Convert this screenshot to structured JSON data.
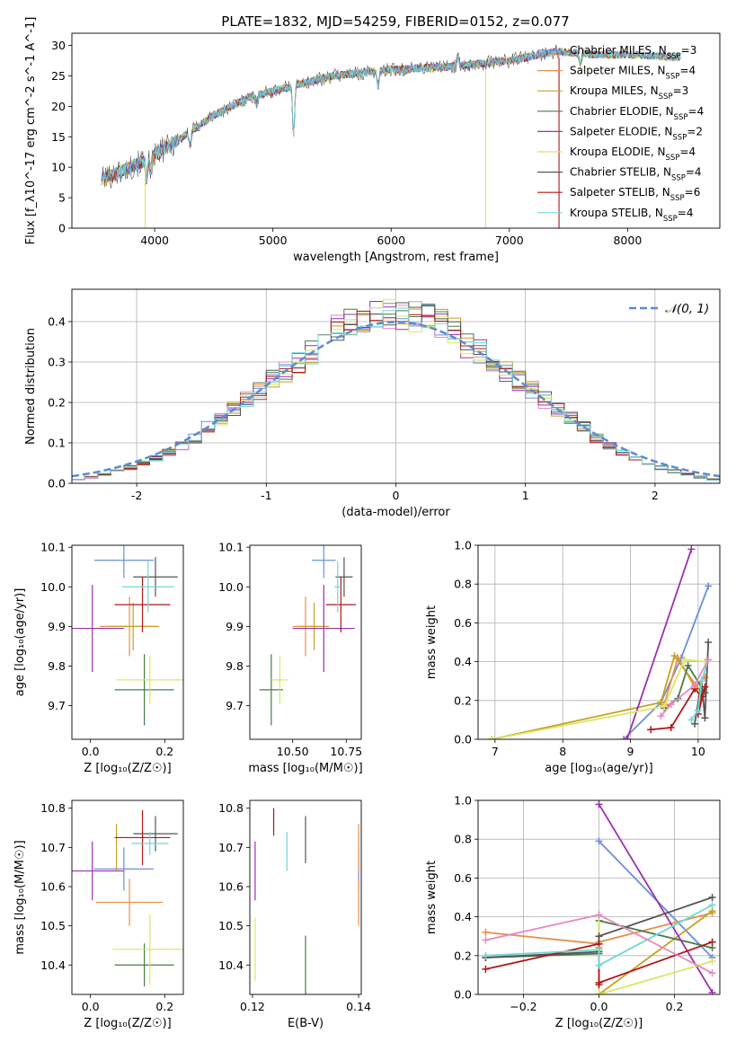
{
  "figure_title": "PLATE=1832, MJD=54259, FIBERID=0152, z=0.077",
  "colors": {
    "chabrier_miles": "#6a8fd8",
    "salpeter_miles": "#e8904a",
    "kroupa_miles": "#c8a020",
    "chabrier_elodie": "#4a7a4a",
    "salpeter_elodie": "#9a30b0",
    "kroupa_elodie": "#d8e860",
    "chabrier_stelib": "#555555",
    "salpeter_stelib": "#b01818",
    "kroupa_stelib": "#70d8d8",
    "gauss": "#5b8bd0"
  },
  "chart_data": [
    {
      "id": "spectrum",
      "type": "line",
      "title": "PLATE=1832, MJD=54259, FIBERID=0152, z=0.077",
      "xlabel": "wavelength [Angstrom, rest frame]",
      "ylabel": "Flux [f_λ10^-17 erg cm^-2 s^-1 A^-1]",
      "xlim": [
        3300,
        8780
      ],
      "ylim": [
        0,
        32
      ],
      "xticks": [
        4000,
        5000,
        6000,
        7000,
        8000
      ],
      "yticks": [
        0,
        5,
        10,
        15,
        20,
        25,
        30
      ],
      "legend_position": "top-right",
      "legend": [
        {
          "base": "Chabrier MILES, N",
          "n": "3",
          "color_key": "chabrier_miles"
        },
        {
          "base": "Salpeter MILES, N",
          "n": "4",
          "color_key": "salpeter_miles"
        },
        {
          "base": "Kroupa MILES, N",
          "n": "3",
          "color_key": "kroupa_miles"
        },
        {
          "base": "Chabrier ELODIE, N",
          "n": "4",
          "color_key": "chabrier_elodie"
        },
        {
          "base": "Salpeter ELODIE, N",
          "n": "2",
          "color_key": "salpeter_elodie"
        },
        {
          "base": "Kroupa ELODIE, N",
          "n": "4",
          "color_key": "kroupa_elodie"
        },
        {
          "base": "Chabrier STELIB, N",
          "n": "4",
          "color_key": "chabrier_stelib"
        },
        {
          "base": "Salpeter STELIB, N",
          "n": "6",
          "color_key": "salpeter_stelib"
        },
        {
          "base": "Kroupa STELIB, N",
          "n": "4",
          "color_key": "kroupa_stelib"
        }
      ],
      "legend_subscript": "SSP",
      "continuum": [
        [
          3550,
          8
        ],
        [
          3800,
          10
        ],
        [
          4000,
          12
        ],
        [
          4200,
          14.5
        ],
        [
          4500,
          18.5
        ],
        [
          4800,
          21.5
        ],
        [
          5000,
          22.5
        ],
        [
          5200,
          23.5
        ],
        [
          5500,
          25
        ],
        [
          6000,
          26
        ],
        [
          6500,
          26.5
        ],
        [
          7000,
          27.5
        ],
        [
          7400,
          29
        ],
        [
          7700,
          28.5
        ],
        [
          8000,
          28.5
        ],
        [
          8500,
          28
        ]
      ],
      "absorption_features": [
        [
          3933,
          3
        ],
        [
          3968,
          3
        ],
        [
          4300,
          2.5
        ],
        [
          4861,
          1.5
        ],
        [
          5175,
          8
        ],
        [
          5890,
          2.5
        ],
        [
          6563,
          -1.5
        ],
        [
          7600,
          2
        ]
      ],
      "model_x_range": [
        3550,
        8450
      ],
      "data_x_range": [
        3550,
        7420
      ],
      "dropouts": [
        {
          "x": 3920,
          "color_key": "kroupa_elodie"
        },
        {
          "x": 6800,
          "color_key": "kroupa_elodie"
        },
        {
          "x": 7420,
          "color_key": "salpeter_stelib"
        }
      ]
    },
    {
      "id": "residual_histogram",
      "type": "histogram",
      "xlabel": "(data-model)/error",
      "ylabel": "Normed distribution",
      "xlim": [
        -2.5,
        2.5
      ],
      "ylim": [
        0,
        0.48
      ],
      "xticks": [
        -2,
        -1,
        0,
        1,
        2
      ],
      "yticks": [
        0.0,
        0.1,
        0.2,
        0.3,
        0.4
      ],
      "grid": true,
      "bin_width": 0.1,
      "legend_position": "top-right",
      "gaussian_label": "𝒩(0, 1)",
      "gaussian": {
        "mean": 0,
        "sigma": 1
      }
    },
    {
      "id": "age_vs_Z",
      "type": "errorbar",
      "xlabel": "Z [log₁₀(Z/Z☉)]",
      "ylabel": "age [log₁₀(age/yr)]",
      "xlim": [
        -0.05,
        0.25
      ],
      "ylim": [
        9.615,
        10.105
      ],
      "xticks": [
        0.0,
        0.2
      ],
      "yticks": [
        9.7,
        9.8,
        9.9,
        10.0,
        10.1
      ],
      "points": [
        {
          "x": 0.09,
          "xerr": 0.08,
          "y": 10.067,
          "yerr": 0.045,
          "color_key": "chabrier_miles"
        },
        {
          "x": 0.105,
          "xerr": 0.08,
          "y": 9.9,
          "yerr": 0.075,
          "color_key": "salpeter_miles"
        },
        {
          "x": 0.115,
          "xerr": 0.065,
          "y": 9.9,
          "yerr": 0.06,
          "color_key": "kroupa_miles"
        },
        {
          "x": 0.145,
          "xerr": 0.08,
          "y": 9.74,
          "yerr": 0.09,
          "color_key": "chabrier_elodie"
        },
        {
          "x": 0.005,
          "xerr": 0.085,
          "y": 9.895,
          "yerr": 0.11,
          "color_key": "salpeter_elodie"
        },
        {
          "x": 0.16,
          "xerr": 0.09,
          "y": 9.765,
          "yerr": 0.06,
          "color_key": "kroupa_elodie"
        },
        {
          "x": 0.175,
          "xerr": 0.06,
          "y": 10.025,
          "yerr": 0.05,
          "color_key": "chabrier_stelib"
        },
        {
          "x": 0.14,
          "xerr": 0.075,
          "y": 9.955,
          "yerr": 0.07,
          "color_key": "salpeter_stelib"
        },
        {
          "x": 0.155,
          "xerr": 0.07,
          "y": 10.0,
          "yerr": 0.065,
          "color_key": "kroupa_stelib"
        }
      ]
    },
    {
      "id": "age_vs_mass",
      "type": "errorbar",
      "xlabel": "mass [log₁₀(M/M☉)]",
      "xlim": [
        10.3,
        10.82
      ],
      "ylim": [
        9.615,
        10.105
      ],
      "xticks": [
        10.5,
        10.75
      ],
      "xtick_labels": [
        "10.50",
        "10.75"
      ],
      "yticks": [
        9.7,
        9.8,
        9.9,
        10.0,
        10.1
      ],
      "points": [
        {
          "x": 10.645,
          "xerr": 0.055,
          "y": 10.067,
          "yerr": 0.045,
          "color_key": "chabrier_miles"
        },
        {
          "x": 10.56,
          "xerr": 0.06,
          "y": 9.9,
          "yerr": 0.075,
          "color_key": "salpeter_miles"
        },
        {
          "x": 10.6,
          "xerr": 0.07,
          "y": 9.9,
          "yerr": 0.06,
          "color_key": "kroupa_miles"
        },
        {
          "x": 10.4,
          "xerr": 0.055,
          "y": 9.74,
          "yerr": 0.09,
          "color_key": "chabrier_elodie"
        },
        {
          "x": 10.645,
          "xerr": 0.145,
          "y": 9.895,
          "yerr": 0.11,
          "color_key": "salpeter_elodie"
        },
        {
          "x": 10.44,
          "xerr": 0.04,
          "y": 9.765,
          "yerr": 0.06,
          "color_key": "kroupa_elodie"
        },
        {
          "x": 10.74,
          "xerr": 0.04,
          "y": 10.025,
          "yerr": 0.05,
          "color_key": "chabrier_stelib"
        },
        {
          "x": 10.725,
          "xerr": 0.07,
          "y": 9.955,
          "yerr": 0.07,
          "color_key": "salpeter_stelib"
        },
        {
          "x": 10.71,
          "xerr": 0.015,
          "y": 10.0,
          "yerr": 0.065,
          "color_key": "kroupa_stelib"
        }
      ]
    },
    {
      "id": "weight_vs_age",
      "type": "line",
      "xlabel": "age [log₁₀(age/yr)]",
      "ylabel": "mass weight",
      "xlim": [
        6.75,
        10.32
      ],
      "ylim": [
        0,
        1
      ],
      "xticks": [
        7,
        8,
        9,
        10
      ],
      "yticks": [
        0.0,
        0.2,
        0.4,
        0.6,
        0.8,
        1.0
      ],
      "yticklabels": [
        "0.0",
        "0.2",
        "0.4",
        "0.6",
        "0.8",
        "1.0"
      ],
      "grid": true,
      "series": [
        {
          "color_key": "chabrier_miles",
          "x": [
            8.9,
            9.45,
            9.75,
            10.15
          ],
          "y": [
            0.0,
            0.19,
            0.42,
            0.79
          ]
        },
        {
          "color_key": "salpeter_miles",
          "x": [
            9.5,
            9.7,
            9.95,
            10.1
          ],
          "y": [
            0.18,
            0.42,
            0.27,
            0.32
          ]
        },
        {
          "color_key": "kroupa_miles",
          "x": [
            6.95,
            9.45,
            9.65,
            10.05
          ],
          "y": [
            0.0,
            0.19,
            0.43,
            0.24
          ]
        },
        {
          "color_key": "chabrier_elodie",
          "x": [
            9.5,
            9.7,
            9.85,
            10.1
          ],
          "y": [
            0.16,
            0.21,
            0.38,
            0.24
          ]
        },
        {
          "color_key": "salpeter_elodie",
          "x": [
            8.95,
            9.9
          ],
          "y": [
            0.0,
            0.98
          ]
        },
        {
          "color_key": "kroupa_elodie",
          "x": [
            6.95,
            9.5,
            9.8,
            10.1
          ],
          "y": [
            0.0,
            0.17,
            0.41,
            0.4
          ]
        },
        {
          "color_key": "chabrier_stelib",
          "x": [
            9.95,
            10.05,
            10.1,
            10.15
          ],
          "y": [
            0.08,
            0.3,
            0.11,
            0.5
          ]
        },
        {
          "color_key": "salpeter_stelib",
          "x": [
            9.3,
            9.6,
            9.95,
            10.05,
            10.0,
            10.1
          ],
          "y": [
            0.05,
            0.06,
            0.26,
            0.22,
            0.13,
            0.27
          ]
        },
        {
          "color_key": "kroupa_stelib",
          "x": [
            9.9,
            10.0,
            10.05,
            10.15
          ],
          "y": [
            0.1,
            0.15,
            0.3,
            0.41
          ]
        },
        {
          "color_key": "salpeter_miles",
          "x": [
            9.45,
            9.6,
            9.95,
            10.15
          ],
          "y": [
            0.12,
            0.18,
            0.28,
            0.41
          ],
          "style": "pink"
        }
      ]
    },
    {
      "id": "mass_vs_Z",
      "type": "errorbar",
      "xlabel": "Z [log₁₀(Z/Z☉)]",
      "ylabel": "mass [log₁₀(M/M☉)]",
      "xlim": [
        -0.05,
        0.25
      ],
      "ylim": [
        10.325,
        10.82
      ],
      "xticks": [
        0.0,
        0.2
      ],
      "yticks": [
        10.4,
        10.5,
        10.6,
        10.7,
        10.8
      ],
      "points": [
        {
          "x": 0.09,
          "xerr": 0.08,
          "y": 10.645,
          "yerr": 0.055,
          "color_key": "chabrier_miles"
        },
        {
          "x": 0.105,
          "xerr": 0.09,
          "y": 10.56,
          "yerr": 0.06,
          "color_key": "salpeter_miles"
        },
        {
          "x": 0.07,
          "xerr": 0.0,
          "y": 10.7,
          "yerr": 0.06,
          "color_key": "kroupa_miles"
        },
        {
          "x": 0.145,
          "xerr": 0.08,
          "y": 10.4,
          "yerr": 0.055,
          "color_key": "chabrier_elodie"
        },
        {
          "x": 0.005,
          "xerr": 0.085,
          "y": 10.64,
          "yerr": 0.075,
          "color_key": "salpeter_elodie"
        },
        {
          "x": 0.16,
          "xerr": 0.1,
          "y": 10.44,
          "yerr": 0.09,
          "color_key": "kroupa_elodie"
        },
        {
          "x": 0.175,
          "xerr": 0.06,
          "y": 10.735,
          "yerr": 0.045,
          "color_key": "chabrier_stelib"
        },
        {
          "x": 0.14,
          "xerr": 0.075,
          "y": 10.725,
          "yerr": 0.07,
          "color_key": "salpeter_stelib"
        },
        {
          "x": 0.16,
          "xerr": 0.05,
          "y": 10.71,
          "yerr": 0.03,
          "color_key": "kroupa_stelib"
        }
      ]
    },
    {
      "id": "mass_vs_EBV",
      "type": "errorbar",
      "xlabel": "E(B-V)",
      "xlim": [
        0.1195,
        0.1405
      ],
      "ylim": [
        10.325,
        10.82
      ],
      "xticks": [
        0.12,
        0.14
      ],
      "yticks": [
        10.4,
        10.5,
        10.6,
        10.7,
        10.8
      ],
      "points": [
        {
          "x": 0.14,
          "xerr": 0,
          "y": 10.645,
          "yerr": 0.055,
          "color_key": "chabrier_miles"
        },
        {
          "x": 0.14,
          "xerr": 0,
          "y": 10.56,
          "yerr": 0.06,
          "color_key": "salpeter_miles"
        },
        {
          "x": 0.14,
          "xerr": 0,
          "y": 10.7,
          "yerr": 0.06,
          "color_key": "salpeter_miles"
        },
        {
          "x": 0.13,
          "xerr": 0,
          "y": 10.4,
          "yerr": 0.075,
          "color_key": "chabrier_elodie"
        },
        {
          "x": 0.1205,
          "xerr": 0,
          "y": 10.64,
          "yerr": 0.075,
          "color_key": "salpeter_elodie"
        },
        {
          "x": 0.1205,
          "xerr": 0,
          "y": 10.44,
          "yerr": 0.08,
          "color_key": "kroupa_elodie"
        },
        {
          "x": 0.13,
          "xerr": 0,
          "y": 10.72,
          "yerr": 0.06,
          "color_key": "chabrier_stelib"
        },
        {
          "x": 0.124,
          "xerr": 0,
          "y": 10.765,
          "yerr": 0.035,
          "color_key": "salpeter_stelib"
        },
        {
          "x": 0.1265,
          "xerr": 0,
          "y": 10.69,
          "yerr": 0.05,
          "color_key": "kroupa_stelib"
        }
      ]
    },
    {
      "id": "weight_vs_Z",
      "type": "line",
      "xlabel": "Z [log₁₀(Z/Z☉)]",
      "ylabel": "mass weight",
      "xlim": [
        -0.32,
        0.32
      ],
      "ylim": [
        0,
        1
      ],
      "xticks": [
        -0.2,
        0.0,
        0.2
      ],
      "xticklabels": [
        "−0.2",
        "0.0",
        "0.2"
      ],
      "yticks": [
        0.0,
        0.2,
        0.4,
        0.6,
        0.8,
        1.0
      ],
      "yticklabels": [
        "0.0",
        "0.2",
        "0.4",
        "0.6",
        "0.8",
        "1.0"
      ],
      "grid": true,
      "series": [
        {
          "color_key": "chabrier_miles",
          "x": [
            0.0,
            0.3
          ],
          "y": [
            0.79,
            0.19
          ]
        },
        {
          "color_key": "salpeter_miles",
          "x": [
            -0.3,
            0.0,
            0.0,
            0.3
          ],
          "y": [
            0.32,
            0.26,
            0.27,
            0.42
          ]
        },
        {
          "color_key": "kroupa_miles",
          "x": [
            0.0,
            0.0,
            0.3
          ],
          "y": [
            0.24,
            0.0,
            0.43
          ]
        },
        {
          "color_key": "chabrier_elodie",
          "x": [
            -0.3,
            0.0,
            0.0,
            0.3
          ],
          "y": [
            0.19,
            0.21,
            0.38,
            0.24
          ]
        },
        {
          "color_key": "salpeter_elodie",
          "x": [
            0.0,
            0.3
          ],
          "y": [
            0.98,
            0.01
          ]
        },
        {
          "color_key": "kroupa_elodie",
          "x": [
            0.0,
            0.0,
            0.3
          ],
          "y": [
            0.41,
            0.0,
            0.17
          ]
        },
        {
          "color_key": "chabrier_stelib",
          "x": [
            -0.3,
            0.0,
            0.0,
            0.3
          ],
          "y": [
            0.19,
            0.22,
            0.3,
            0.5
          ]
        },
        {
          "color_key": "salpeter_stelib",
          "x": [
            -0.3,
            0.0,
            0.0,
            0.0,
            0.3
          ],
          "y": [
            0.13,
            0.26,
            0.05,
            0.06,
            0.27
          ]
        },
        {
          "color_key": "kroupa_stelib",
          "x": [
            -0.3,
            0.0,
            0.0,
            0.3
          ],
          "y": [
            0.2,
            0.23,
            0.15,
            0.46
          ]
        },
        {
          "color_key": "salpeter_miles",
          "x": [
            -0.3,
            0.0,
            0.3
          ],
          "y": [
            0.28,
            0.41,
            0.11
          ],
          "style": "pink"
        }
      ]
    }
  ]
}
